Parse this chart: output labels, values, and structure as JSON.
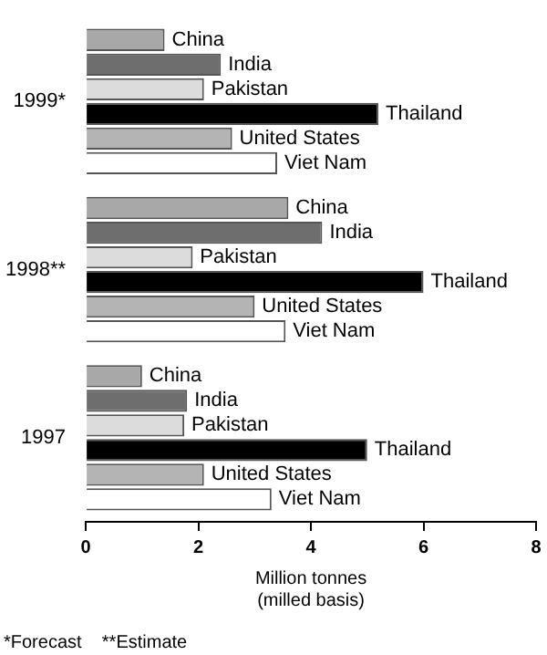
{
  "chart_data": {
    "type": "bar",
    "orientation": "horizontal",
    "categories": [
      "1999*",
      "1998**",
      "1997"
    ],
    "series": [
      {
        "name": "China",
        "color": "#a8a8a8",
        "values": [
          1.4,
          3.6,
          1.0
        ]
      },
      {
        "name": "India",
        "color": "#6e6e6e",
        "values": [
          2.4,
          4.2,
          1.8
        ]
      },
      {
        "name": "Pakistan",
        "color": "#dcdcdc",
        "values": [
          2.1,
          1.9,
          1.75
        ]
      },
      {
        "name": "Thailand",
        "color": "#000000",
        "values": [
          5.2,
          6.0,
          5.0
        ]
      },
      {
        "name": "United States",
        "color": "#b4b4b4",
        "values": [
          2.6,
          3.0,
          2.1
        ]
      },
      {
        "name": "Viet Nam",
        "color": "#ffffff",
        "values": [
          3.4,
          3.55,
          3.3
        ]
      }
    ],
    "xlim": [
      0,
      8
    ],
    "xticks": [
      0,
      2,
      4,
      6,
      8
    ],
    "xlabel": "Million tonnes\n(milled basis)",
    "grid": false,
    "legend": false,
    "annotations": [
      "*Forecast    **Estimate"
    ]
  }
}
